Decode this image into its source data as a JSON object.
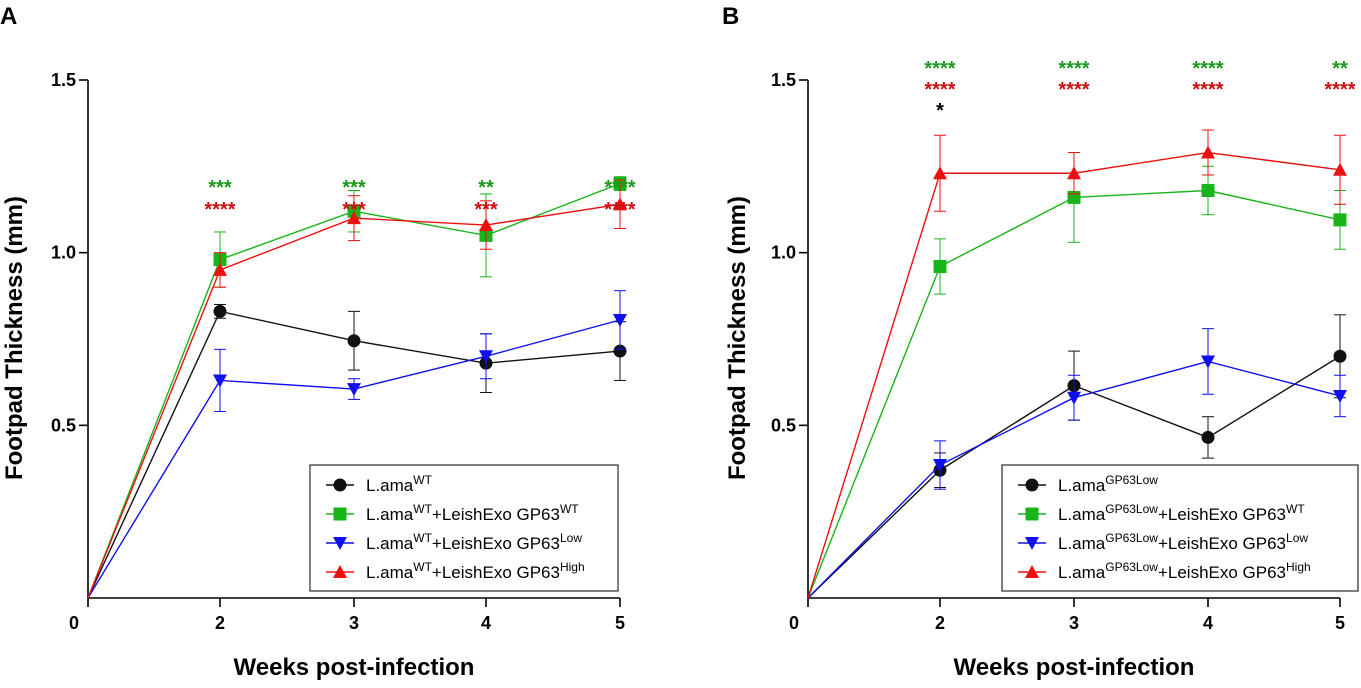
{
  "colors": {
    "black": "#111111",
    "green": "#19b419",
    "blue": "#1010ee",
    "red": "#ee1010",
    "sig_green": "#1a9a1a",
    "sig_red": "#cc1010",
    "sig_black": "#000000"
  },
  "chart_data": [
    {
      "panel_label": "A",
      "type": "line",
      "xlabel": "Weeks post-infection",
      "ylabel": "Footpad Thickness (mm)",
      "ylim": [
        0,
        1.5
      ],
      "xlim": [
        0,
        5
      ],
      "x_ticks": [
        0,
        2,
        3,
        4,
        5
      ],
      "x_tick_labels": [
        "0",
        "2",
        "3",
        "4",
        "5"
      ],
      "y_ticks": [
        0.5,
        1.0,
        1.5
      ],
      "y_tick_labels": [
        "0.5",
        "1.0",
        "1.5"
      ],
      "legend_position": "bottom-right",
      "x": [
        0,
        2,
        3,
        4,
        5
      ],
      "series": [
        {
          "name": "L.amaWT",
          "base": "L.ama",
          "sup": "WT",
          "suffix": "",
          "suffix_sup": "",
          "color_key": "black",
          "marker": "circle",
          "values": [
            0,
            0.83,
            0.745,
            0.68,
            0.715
          ],
          "errors": [
            0,
            0.02,
            0.085,
            0.085,
            0.085
          ]
        },
        {
          "name": "L.amaWT+LeishExo GP63WT",
          "base": "L.ama",
          "sup": "WT",
          "suffix": "+LeishExo GP63",
          "suffix_sup": "WT",
          "color_key": "green",
          "marker": "square",
          "values": [
            0,
            0.98,
            1.12,
            1.05,
            1.2
          ],
          "errors": [
            0,
            0.08,
            0.06,
            0.12,
            0.02
          ]
        },
        {
          "name": "L.amaWT+LeishExo GP63Low",
          "base": "L.ama",
          "sup": "WT",
          "suffix": "+LeishExo GP63",
          "suffix_sup": "Low",
          "color_key": "blue",
          "marker": "triangle-down",
          "values": [
            0,
            0.63,
            0.605,
            0.7,
            0.805
          ],
          "errors": [
            0,
            0.09,
            0.03,
            0.065,
            0.085
          ]
        },
        {
          "name": "L.amaWT+LeishExo GP63High",
          "base": "L.ama",
          "sup": "WT",
          "suffix": "+LeishExo GP63",
          "suffix_sup": "High",
          "color_key": "red",
          "marker": "triangle-up",
          "values": [
            0,
            0.95,
            1.1,
            1.08,
            1.14
          ],
          "errors": [
            0,
            0.05,
            0.065,
            0.07,
            0.07
          ]
        }
      ],
      "annotations": [
        {
          "x": 2,
          "rows": [
            {
              "text": "***",
              "color_key": "sig_green"
            },
            {
              "text": "****",
              "color_key": "sig_red"
            }
          ]
        },
        {
          "x": 3,
          "rows": [
            {
              "text": "***",
              "color_key": "sig_green"
            },
            {
              "text": "***",
              "color_key": "sig_red"
            }
          ]
        },
        {
          "x": 4,
          "rows": [
            {
              "text": "**",
              "color_key": "sig_green"
            },
            {
              "text": "***",
              "color_key": "sig_red"
            }
          ]
        },
        {
          "x": 5,
          "rows": [
            {
              "text": "****",
              "color_key": "sig_green"
            },
            {
              "text": "****",
              "color_key": "sig_red"
            }
          ]
        }
      ]
    },
    {
      "panel_label": "B",
      "type": "line",
      "xlabel": "Weeks post-infection",
      "ylabel": "Footpad Thickness (mm)",
      "ylim": [
        0,
        1.5
      ],
      "xlim": [
        0,
        5
      ],
      "x_ticks": [
        0,
        2,
        3,
        4,
        5
      ],
      "x_tick_labels": [
        "0",
        "2",
        "3",
        "4",
        "5"
      ],
      "y_ticks": [
        0.5,
        1.0,
        1.5
      ],
      "y_tick_labels": [
        "0.5",
        "1.0",
        "1.5"
      ],
      "legend_position": "bottom-right",
      "x": [
        0,
        2,
        3,
        4,
        5
      ],
      "series": [
        {
          "name": "L.amaGP63Low",
          "base": "L.ama",
          "sup": "GP63Low",
          "suffix": "",
          "suffix_sup": "",
          "color_key": "black",
          "marker": "circle",
          "values": [
            0,
            0.37,
            0.615,
            0.465,
            0.7
          ],
          "errors": [
            0,
            0.05,
            0.1,
            0.06,
            0.12
          ]
        },
        {
          "name": "L.amaGP63Low+LeishExo GP63WT",
          "base": "L.ama",
          "sup": "GP63Low",
          "suffix": "+LeishExo GP63",
          "suffix_sup": "WT",
          "color_key": "green",
          "marker": "square",
          "values": [
            0,
            0.96,
            1.16,
            1.18,
            1.095
          ],
          "errors": [
            0,
            0.08,
            0.13,
            0.07,
            0.085
          ]
        },
        {
          "name": "L.amaGP63Low+LeishExo GP63Low",
          "base": "L.ama",
          "sup": "GP63Low",
          "suffix": "+LeishExo GP63",
          "suffix_sup": "Low",
          "color_key": "blue",
          "marker": "triangle-down",
          "values": [
            0,
            0.385,
            0.58,
            0.685,
            0.585
          ],
          "errors": [
            0,
            0.07,
            0.065,
            0.095,
            0.06
          ]
        },
        {
          "name": "L.amaGP63Low+LeishExo GP63High",
          "base": "L.ama",
          "sup": "GP63Low",
          "suffix": "+LeishExo GP63",
          "suffix_sup": "High",
          "color_key": "red",
          "marker": "triangle-up",
          "values": [
            0,
            1.23,
            1.23,
            1.29,
            1.24
          ],
          "errors": [
            0,
            0.11,
            0.06,
            0.065,
            0.1
          ]
        }
      ],
      "annotations": [
        {
          "x": 2,
          "rows": [
            {
              "text": "****",
              "color_key": "sig_green"
            },
            {
              "text": "****",
              "color_key": "sig_red"
            },
            {
              "text": "*",
              "color_key": "sig_black"
            }
          ]
        },
        {
          "x": 3,
          "rows": [
            {
              "text": "****",
              "color_key": "sig_green"
            },
            {
              "text": "****",
              "color_key": "sig_red"
            }
          ]
        },
        {
          "x": 4,
          "rows": [
            {
              "text": "****",
              "color_key": "sig_green"
            },
            {
              "text": "****",
              "color_key": "sig_red"
            }
          ]
        },
        {
          "x": 5,
          "rows": [
            {
              "text": "**",
              "color_key": "sig_green"
            },
            {
              "text": "****",
              "color_key": "sig_red"
            }
          ]
        }
      ]
    }
  ]
}
